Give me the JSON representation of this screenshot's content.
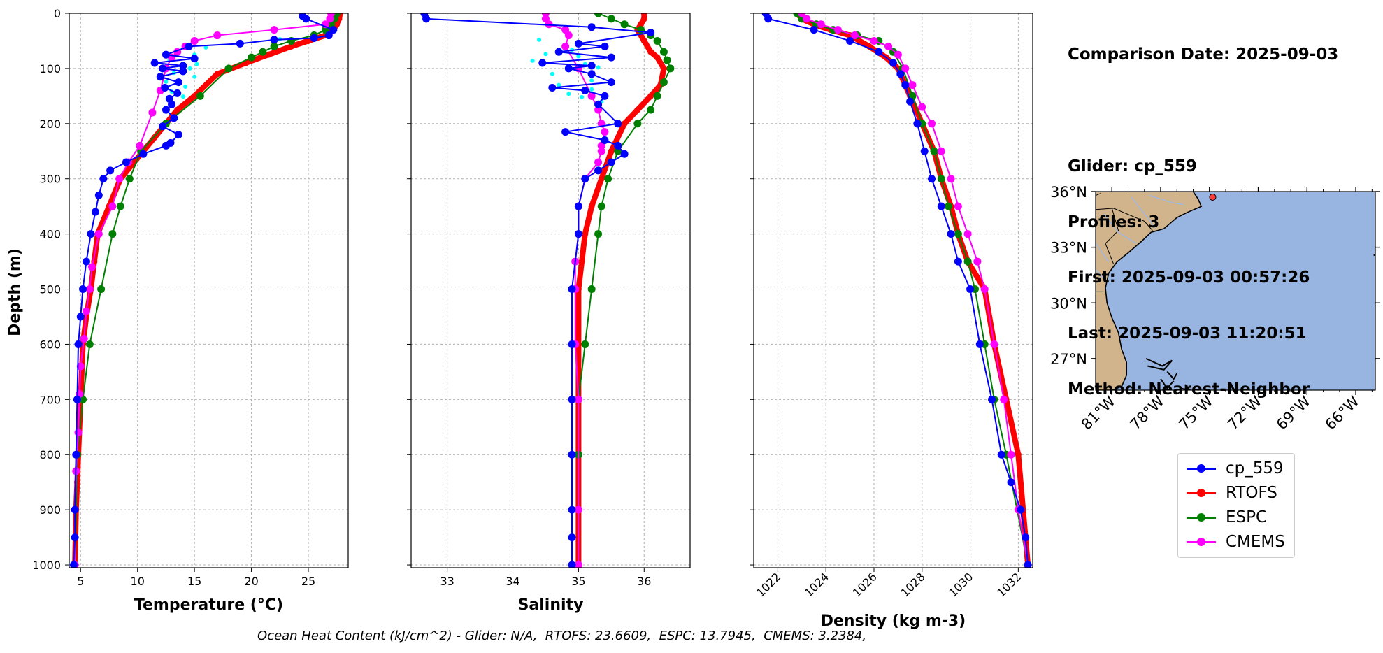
{
  "info": {
    "lines": [
      "Comparison Date: 2025-09-03",
      "",
      "Glider: cp_559",
      "Profiles: 3",
      "First: 2025-09-03 00:57:26",
      "Last: 2025-09-03 11:20:51",
      "Method: Nearest-Neighbor"
    ]
  },
  "footer": "Ocean Heat Content (kJ/cm^2) - Glider: N/A,  RTOFS: 23.6609,  ESPC: 13.7945,  CMEMS: 3.2384,",
  "colors": {
    "cp_559": "#0000ff",
    "RTOFS": "#ff0000",
    "ESPC": "#008000",
    "CMEMS": "#ff00ff",
    "raw_glider": "#00ffff",
    "land": "#d2b48c",
    "ocean": "#98b4e0",
    "river": "#9db8e6",
    "grid": "#b0b0b0",
    "location_marker": "#ff3b3b"
  },
  "legend": [
    {
      "label": "cp_559",
      "color": "#0000ff"
    },
    {
      "label": "RTOFS",
      "color": "#ff0000"
    },
    {
      "label": "ESPC",
      "color": "#008000"
    },
    {
      "label": "CMEMS",
      "color": "#ff00ff"
    }
  ],
  "chart_data": [
    {
      "type": "line",
      "xlabel": "Temperature (°C)",
      "ylabel": "Depth (m)",
      "xlim": [
        4.0,
        28.5
      ],
      "ylim": [
        1005,
        0
      ],
      "xticks": [
        5,
        10,
        15,
        20,
        25
      ],
      "yticks": [
        0,
        100,
        200,
        300,
        400,
        500,
        600,
        700,
        800,
        900,
        1000
      ],
      "grid": true,
      "series": [
        {
          "name": "cp_559",
          "x": [
            24.5,
            24.8,
            27.2,
            26.8,
            25.5,
            22.0,
            19.0,
            14.5,
            12.5,
            15.0,
            11.5,
            14.0,
            12.2,
            14.0,
            12.0,
            13.6,
            12.4,
            13.5,
            12.8,
            13.0,
            12.5,
            13.2,
            12.2,
            13.6,
            12.9,
            12.5,
            10.5,
            9.0,
            7.6,
            7.0,
            6.6,
            6.3,
            5.9,
            5.5,
            5.2,
            5.0,
            4.8,
            4.7,
            4.6,
            4.5,
            4.5,
            4.4
          ],
          "y": [
            5,
            10,
            30,
            40,
            45,
            48,
            55,
            60,
            75,
            82,
            90,
            95,
            100,
            105,
            115,
            125,
            135,
            145,
            155,
            165,
            175,
            190,
            205,
            220,
            235,
            240,
            255,
            270,
            285,
            300,
            330,
            360,
            400,
            450,
            500,
            550,
            600,
            700,
            800,
            900,
            950,
            1000
          ]
        },
        {
          "name": "RTOFS",
          "x": [
            27.8,
            27.7,
            27.5,
            27.2,
            26.5,
            25.0,
            23.5,
            21.5,
            19.5,
            17.0,
            15.0,
            13.5,
            12.5,
            11.5,
            10.5,
            9.5,
            8.5,
            7.5,
            6.5,
            6.2,
            5.9,
            5.5,
            5.2,
            5.0,
            4.8,
            4.7,
            4.6,
            4.5
          ],
          "y": [
            0,
            10,
            20,
            30,
            40,
            50,
            60,
            75,
            90,
            110,
            150,
            175,
            200,
            225,
            250,
            275,
            300,
            350,
            400,
            450,
            500,
            550,
            600,
            700,
            800,
            850,
            900,
            1000
          ]
        },
        {
          "name": "ESPC",
          "x": [
            27.5,
            27.3,
            27.0,
            26.5,
            25.5,
            23.5,
            22.0,
            21.0,
            20.0,
            18.0,
            15.5,
            12.5,
            10.3,
            9.3,
            8.5,
            7.8,
            6.8,
            5.8,
            5.2,
            4.7,
            4.5
          ],
          "y": [
            0,
            10,
            20,
            30,
            40,
            50,
            60,
            70,
            80,
            100,
            150,
            200,
            250,
            300,
            350,
            400,
            500,
            600,
            700,
            800,
            1000
          ]
        },
        {
          "name": "CMEMS",
          "x": [
            27.0,
            26.9,
            26.5,
            22.0,
            17.0,
            15.0,
            14.2,
            13.5,
            13.0,
            12.5,
            12.0,
            11.3,
            10.2,
            9.2,
            8.4,
            7.8,
            6.6,
            6.0,
            5.8,
            5.5,
            5.3,
            5.0,
            4.9,
            4.8,
            4.6,
            4.5,
            4.5
          ],
          "y": [
            0,
            10,
            20,
            30,
            40,
            50,
            60,
            70,
            80,
            100,
            140,
            180,
            240,
            270,
            300,
            350,
            400,
            460,
            500,
            540,
            590,
            640,
            690,
            760,
            830,
            900,
            1000
          ]
        },
        {
          "name": "",
          "x": [
            22.5,
            16.0,
            13.5,
            15.0,
            12.8,
            15.2,
            14.6,
            13.2,
            15.0,
            12.5,
            14.2,
            13.0,
            14.0
          ],
          "y": [
            47,
            62,
            70,
            75,
            85,
            92,
            100,
            108,
            115,
            124,
            133,
            142,
            151
          ]
        }
      ]
    },
    {
      "type": "line",
      "xlabel": "Salinity",
      "xlim": [
        32.45,
        36.7
      ],
      "ylim": [
        1005,
        0
      ],
      "xticks": [
        33,
        34,
        35,
        36
      ],
      "grid": true,
      "series": [
        {
          "name": "cp_559",
          "x": [
            32.65,
            32.68,
            35.2,
            36.1,
            35.0,
            35.4,
            34.7,
            35.5,
            34.45,
            35.2,
            34.85,
            35.2,
            35.5,
            34.6,
            35.1,
            35.4,
            35.3,
            35.6,
            34.8,
            35.4,
            35.6,
            35.7,
            35.5,
            35.3,
            35.1,
            35.0,
            35.0,
            34.9,
            34.9,
            34.9,
            34.9,
            34.9,
            34.9,
            34.9
          ],
          "y": [
            0,
            10,
            25,
            35,
            55,
            60,
            70,
            80,
            90,
            95,
            100,
            110,
            125,
            135,
            140,
            150,
            165,
            200,
            215,
            230,
            240,
            255,
            270,
            285,
            300,
            350,
            400,
            500,
            600,
            700,
            800,
            900,
            950,
            1000
          ]
        },
        {
          "name": "RTOFS",
          "x": [
            36.0,
            36.0,
            35.95,
            35.9,
            36.0,
            36.1,
            36.2,
            36.3,
            36.25,
            36.1,
            35.9,
            35.7,
            35.5,
            35.35,
            35.2,
            35.1,
            35.05,
            35.0,
            35.0,
            35.0,
            35.0
          ],
          "y": [
            0,
            10,
            20,
            30,
            50,
            70,
            80,
            100,
            130,
            150,
            175,
            200,
            250,
            300,
            350,
            400,
            450,
            500,
            600,
            800,
            1000
          ]
        },
        {
          "name": "ESPC",
          "x": [
            35.3,
            35.5,
            35.7,
            35.95,
            36.1,
            36.2,
            36.3,
            36.35,
            36.4,
            36.3,
            36.2,
            36.1,
            35.9,
            35.6,
            35.45,
            35.35,
            35.3,
            35.2,
            35.1,
            35.0,
            35.0,
            35.0
          ],
          "y": [
            0,
            10,
            20,
            30,
            40,
            50,
            70,
            85,
            100,
            125,
            150,
            175,
            200,
            250,
            300,
            350,
            400,
            500,
            600,
            700,
            800,
            1000
          ]
        },
        {
          "name": "CMEMS",
          "x": [
            34.5,
            34.5,
            34.55,
            34.8,
            34.85,
            34.8,
            35.0,
            35.2,
            35.3,
            35.35,
            35.4,
            35.35,
            35.35,
            35.3,
            35.1,
            35.0,
            35.0,
            34.95,
            34.95,
            34.95,
            35.0,
            35.0,
            35.0
          ],
          "y": [
            0,
            10,
            20,
            30,
            40,
            60,
            100,
            150,
            175,
            200,
            215,
            240,
            250,
            270,
            300,
            350,
            400,
            450,
            500,
            600,
            700,
            900,
            1000
          ]
        },
        {
          "name": "",
          "x": [
            34.4,
            34.9,
            34.5,
            35.0,
            34.3,
            35.1,
            35.3,
            34.6,
            35.2,
            34.7,
            35.2,
            34.85,
            35.05,
            35.35
          ],
          "y": [
            48,
            66,
            74,
            78,
            86,
            92,
            98,
            110,
            122,
            130,
            138,
            146,
            152,
            160
          ]
        }
      ]
    },
    {
      "type": "line",
      "xlabel": "Density (kg m-3)",
      "xlim": [
        1021.0,
        1032.6
      ],
      "ylim": [
        1005,
        0
      ],
      "xticks": [
        1022,
        1024,
        1026,
        1028,
        1030,
        1032
      ],
      "grid": true,
      "series": [
        {
          "name": "cp_559",
          "x": [
            1021.5,
            1021.6,
            1023.5,
            1025.0,
            1026.2,
            1026.8,
            1027.1,
            1027.3,
            1027.5,
            1027.8,
            1028.1,
            1028.4,
            1028.8,
            1029.2,
            1029.5,
            1030.0,
            1030.4,
            1030.9,
            1031.3,
            1031.7,
            1032.1,
            1032.3,
            1032.4
          ],
          "y": [
            0,
            10,
            30,
            50,
            70,
            90,
            110,
            130,
            160,
            200,
            250,
            300,
            350,
            400,
            450,
            500,
            600,
            700,
            800,
            850,
            900,
            950,
            1000
          ]
        },
        {
          "name": "RTOFS",
          "x": [
            1022.8,
            1023.0,
            1023.5,
            1024.2,
            1025.0,
            1025.8,
            1026.5,
            1027.0,
            1027.5,
            1028.0,
            1028.5,
            1028.8,
            1029.2,
            1029.5,
            1029.9,
            1030.6,
            1031.0,
            1031.5,
            1032.0,
            1032.4
          ],
          "y": [
            0,
            10,
            20,
            30,
            40,
            60,
            80,
            100,
            150,
            200,
            250,
            300,
            350,
            400,
            450,
            500,
            600,
            700,
            800,
            1000
          ]
        },
        {
          "name": "ESPC",
          "x": [
            1022.8,
            1023.0,
            1023.6,
            1024.3,
            1025.3,
            1026.2,
            1026.8,
            1027.2,
            1027.6,
            1028.0,
            1028.5,
            1028.8,
            1029.1,
            1029.5,
            1029.9,
            1030.2,
            1030.6,
            1031.0,
            1031.5,
            1032.4
          ],
          "y": [
            0,
            10,
            20,
            30,
            40,
            50,
            70,
            100,
            150,
            200,
            250,
            300,
            350,
            400,
            450,
            500,
            600,
            700,
            800,
            1000
          ]
        },
        {
          "name": "CMEMS",
          "x": [
            1023.0,
            1023.2,
            1023.8,
            1024.5,
            1025.2,
            1026.0,
            1026.6,
            1027.0,
            1027.3,
            1027.6,
            1028.0,
            1028.4,
            1028.8,
            1029.2,
            1029.5,
            1029.9,
            1030.3,
            1030.6,
            1031.0,
            1031.4,
            1031.7,
            1032.0,
            1032.4
          ],
          "y": [
            0,
            10,
            20,
            30,
            40,
            50,
            60,
            75,
            100,
            130,
            170,
            200,
            250,
            300,
            350,
            400,
            450,
            500,
            600,
            700,
            800,
            900,
            1000
          ]
        }
      ]
    }
  ],
  "map": {
    "lon_range": [
      -82.0,
      -64.8
    ],
    "lat_range": [
      25.3,
      36.0
    ],
    "lat_ticks": [
      {
        "value": 27,
        "label": "27°N"
      },
      {
        "value": 30,
        "label": "30°N"
      },
      {
        "value": 33,
        "label": "33°N"
      },
      {
        "value": 36,
        "label": "36°N"
      }
    ],
    "lon_ticks": [
      {
        "value": -81,
        "label": "81°W"
      },
      {
        "value": -78,
        "label": "78°W"
      },
      {
        "value": -75,
        "label": "75°W"
      },
      {
        "value": -72,
        "label": "72°W"
      },
      {
        "value": -69,
        "label": "69°W"
      },
      {
        "value": -66,
        "label": "66°W"
      }
    ],
    "glider_location": {
      "lon": -74.8,
      "lat": 35.7
    }
  }
}
